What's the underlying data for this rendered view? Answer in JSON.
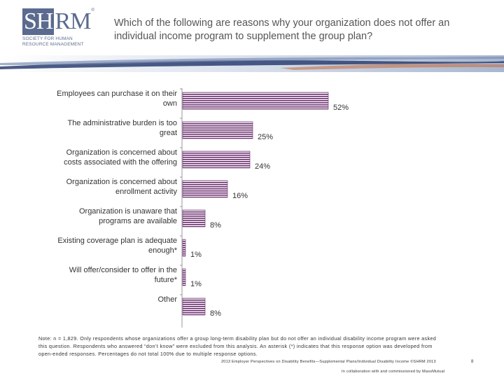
{
  "logo": {
    "mark_boxed": "SH",
    "mark_rest": "RM",
    "registered": "®",
    "sub_line1": "Society for Human",
    "sub_line2": "Resource Management"
  },
  "title": "Which of the following are reasons why your organization does not offer an individual income program to supplement the group plan?",
  "colors": {
    "bar_stripe": "#6b2d6f",
    "logo": "#5b6b8f",
    "banner_dark": "#2c3e70"
  },
  "chart_data": {
    "type": "bar",
    "orientation": "horizontal",
    "categories": [
      [
        "Employees can purchase it on their",
        "own"
      ],
      [
        "The administrative burden is too",
        "great"
      ],
      [
        "Organization is concerned about",
        "costs associated with the offering"
      ],
      [
        "Organization is concerned about",
        "enrollment activity"
      ],
      [
        "Organization is unaware that",
        "programs are available"
      ],
      [
        "Existing coverage plan is adequate",
        "enough*"
      ],
      [
        "Will offer/consider to offer in the",
        "future*"
      ],
      [
        "Other"
      ]
    ],
    "values": [
      52,
      25,
      24,
      16,
      8,
      1,
      1,
      8
    ],
    "value_labels": [
      "52%",
      "25%",
      "24%",
      "16%",
      "8%",
      "1%",
      "1%",
      "8%"
    ],
    "xlim": [
      0,
      55
    ],
    "grid": false,
    "legend": "none",
    "bar_pattern": "horizontal-stripes"
  },
  "note": "Note: n = 1,829. Only respondents whose organizations offer a group long-term disability plan but do not offer an individual disability income program were asked this question. Respondents who answered “don’t know” were excluded from this analysis. An asterisk (*) indicates that this response option was developed from open-ended responses. Percentages do not total 100% due to multiple response options.",
  "footer": {
    "line1": "2013 Employer Perspectives on Disability Benefits—Supplemental Plans/Individual Disability Income ©SHRM 2013",
    "line2": "In collaboration with and commissioned by MassMutual",
    "page_number": "8"
  }
}
